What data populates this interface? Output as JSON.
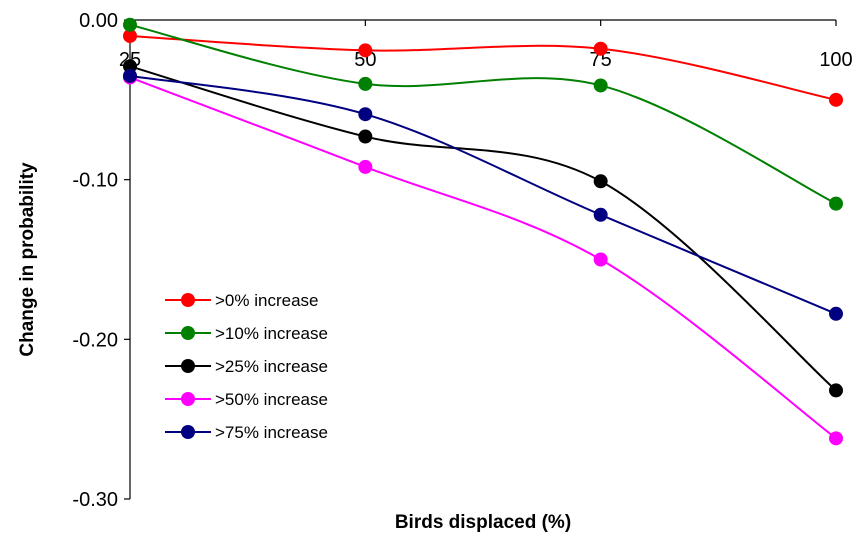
{
  "chart_data": {
    "type": "line",
    "title": "",
    "xlabel": "Birds displaced (%)",
    "ylabel": "Change in probability",
    "x": [
      25,
      50,
      75,
      100
    ],
    "x_tick_labels": [
      "25",
      "50",
      "75",
      "100"
    ],
    "xlim": [
      25,
      100
    ],
    "x_axis_position": "top",
    "y_tick_labels": [
      "0.00",
      "-0.10",
      "-0.20",
      "-0.30"
    ],
    "y_ticks": [
      0,
      -0.1,
      -0.2,
      -0.3
    ],
    "ylim": [
      -0.3,
      0
    ],
    "grid": false,
    "smoothed": true,
    "legend_position": "center-left",
    "series": [
      {
        "name": ">0% increase",
        "color": "#ff0000",
        "values": [
          -0.01,
          -0.019,
          -0.018,
          -0.05
        ]
      },
      {
        "name": ">10% increase",
        "color": "#008000",
        "values": [
          -0.003,
          -0.04,
          -0.041,
          -0.115
        ]
      },
      {
        "name": ">25% increase",
        "color": "#000000",
        "values": [
          -0.029,
          -0.073,
          -0.101,
          -0.232
        ]
      },
      {
        "name": ">50% increase",
        "color": "#ff00ff",
        "values": [
          -0.036,
          -0.092,
          -0.15,
          -0.262
        ]
      },
      {
        "name": ">75% increase",
        "color": "#000080",
        "values": [
          -0.035,
          -0.059,
          -0.122,
          -0.184
        ]
      }
    ]
  }
}
